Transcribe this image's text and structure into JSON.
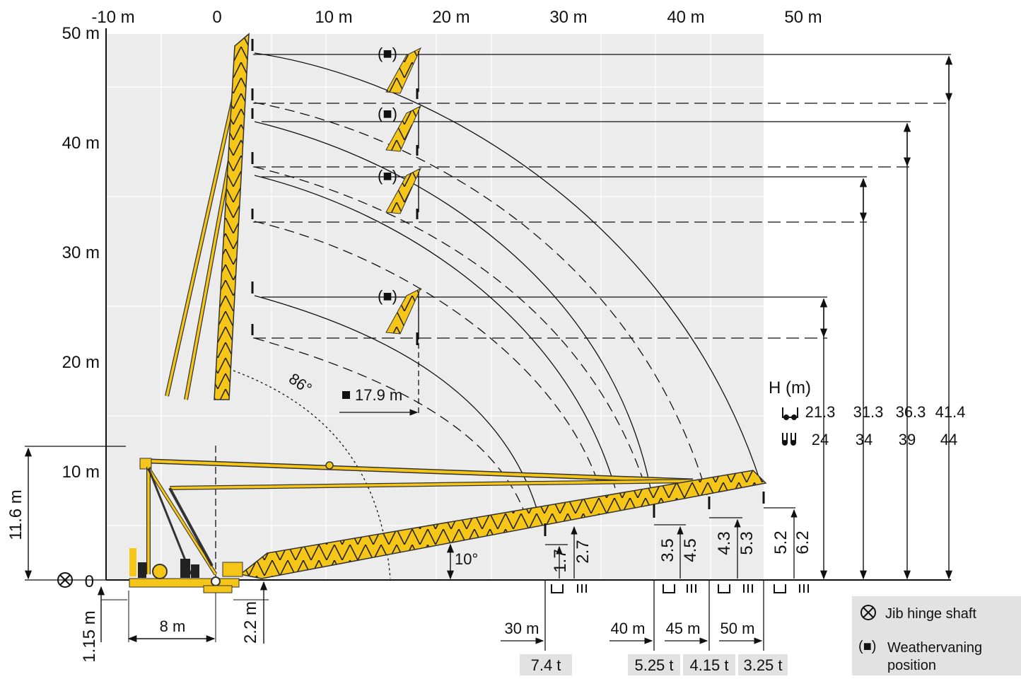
{
  "x_axis": {
    "ticks": [
      {
        "label": "-10 m",
        "value": -10
      },
      {
        "label": "0",
        "value": 0
      },
      {
        "label": "10 m",
        "value": 10
      },
      {
        "label": "20 m",
        "value": 20
      },
      {
        "label": "30 m",
        "value": 30
      },
      {
        "label": "40 m",
        "value": 40
      },
      {
        "label": "50 m",
        "value": 50
      }
    ]
  },
  "y_axis": {
    "ticks": [
      {
        "label": "50 m",
        "value": 50
      },
      {
        "label": "40 m",
        "value": 40
      },
      {
        "label": "30 m",
        "value": 30
      },
      {
        "label": "20 m",
        "value": 20
      },
      {
        "label": "10 m",
        "value": 10
      },
      {
        "label": "0",
        "value": 0
      }
    ]
  },
  "angles": {
    "max": "86°",
    "min": "10°"
  },
  "distances": {
    "weathervane_radius": "17.9 m",
    "pivot_height": "11.6 m",
    "base_height": "1.15 m",
    "base_width": "8 m",
    "hinge_height": "2.2 m"
  },
  "height_table": {
    "title": "H (m)",
    "rows": [
      {
        "values": [
          "21.3",
          "31.3",
          "36.3",
          "41.4"
        ]
      },
      {
        "values": [
          "24",
          "34",
          "39",
          "44"
        ]
      }
    ]
  },
  "hook_heights": [
    {
      "a": "1.7",
      "b": "2.7"
    },
    {
      "a": "3.5",
      "b": "4.5"
    },
    {
      "a": "4.3",
      "b": "5.3"
    },
    {
      "a": "5.2",
      "b": "6.2"
    }
  ],
  "radii": [
    "30 m",
    "40 m",
    "45 m",
    "50 m"
  ],
  "loads": [
    "7.4 t",
    "5.25 t",
    "4.15 t",
    "3.25 t"
  ],
  "legend": {
    "hinge": {
      "symbol": "⊗",
      "text": "Jib hinge shaft"
    },
    "weathervane": {
      "symbol": "(■)",
      "text_line1": "Weathervaning",
      "text_line2": "position"
    }
  },
  "weathervane_symbol": "(■)",
  "colors": {
    "jib": "#f5c518",
    "jib_edge": "#333333",
    "grid": "#ececec",
    "line": "#111111"
  },
  "icons": [
    "hinge-shaft-icon",
    "hook-icon",
    "reeving-2-fall-icon",
    "reeving-4-fall-icon"
  ]
}
